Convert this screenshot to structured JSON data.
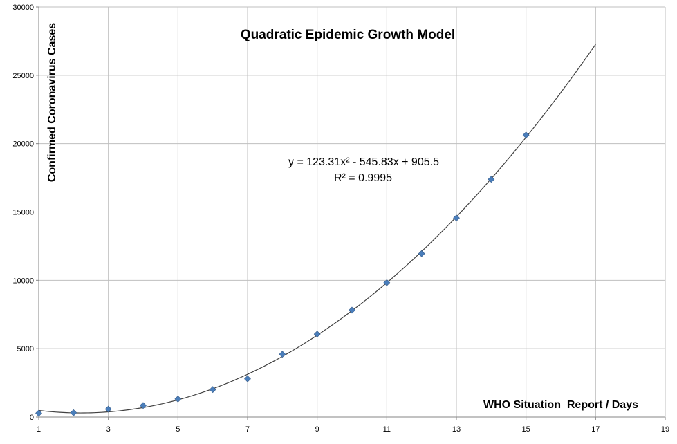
{
  "chart_data": {
    "type": "scatter",
    "title": "Quadratic Epidemic Growth Model",
    "xlabel": "WHO Situation  Report / Days",
    "ylabel": "Confirmed Coronavirus Cases",
    "xlim": [
      1,
      19
    ],
    "ylim": [
      0,
      30000
    ],
    "x_ticks": [
      1,
      3,
      5,
      7,
      9,
      11,
      13,
      15,
      17,
      19
    ],
    "y_ticks": [
      0,
      5000,
      10000,
      15000,
      20000,
      25000,
      30000
    ],
    "grid": true,
    "legend": "none",
    "series": [
      {
        "marker": "diamond",
        "color": "#4a7ebb",
        "x": [
          1,
          2,
          3,
          4,
          5,
          6,
          7,
          8,
          9,
          10,
          11,
          12,
          13,
          14,
          15
        ],
        "y": [
          282,
          314,
          581,
          846,
          1320,
          2014,
          2798,
          4593,
          6065,
          7818,
          9826,
          11953,
          14557,
          17391,
          20630
        ]
      }
    ],
    "trendline": {
      "type": "polynomial-2",
      "coefficients": [
        123.31,
        -545.83,
        905.5
      ],
      "x_range": [
        1,
        17
      ],
      "color": "#404040",
      "equation": "y = 123.31x² - 545.83x + 905.5",
      "r_squared": "R² = 0.9995"
    },
    "colors": {
      "grid": "#bfbfbf",
      "border": "#8c8c8c",
      "marker": "#4a7ebb",
      "marker_stroke": "#385d8a",
      "trendline": "#404040"
    }
  }
}
